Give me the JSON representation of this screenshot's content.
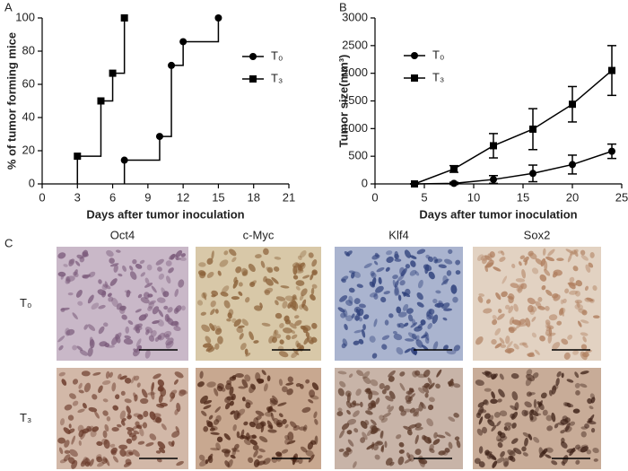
{
  "chart_data": [
    {
      "type": "step",
      "panel": "A",
      "xlabel": "Days after tumor inoculation",
      "ylabel": "% of tumor forming mice",
      "xlim": [
        0,
        21
      ],
      "xticks": [
        0,
        3,
        6,
        9,
        12,
        15,
        18,
        21
      ],
      "ylim": [
        0,
        100
      ],
      "yticks": [
        0,
        20,
        40,
        60,
        80,
        100
      ],
      "series": [
        {
          "name": "T₀",
          "color": "#000000",
          "marker": "circle",
          "x": [
            7,
            10,
            11,
            12,
            15
          ],
          "values": [
            14.3,
            28.6,
            71.4,
            85.7,
            100
          ]
        },
        {
          "name": "T₃",
          "color": "#000000",
          "marker": "square",
          "x": [
            3,
            5,
            6,
            7
          ],
          "values": [
            16.7,
            50,
            66.7,
            100
          ]
        }
      ]
    },
    {
      "type": "line",
      "panel": "B",
      "xlabel": "Days after tumor inoculation",
      "ylabel": "Tumor size(mm³)",
      "xlim": [
        0,
        25
      ],
      "xticks": [
        0,
        5,
        10,
        15,
        20,
        25
      ],
      "ylim": [
        0,
        3000
      ],
      "yticks": [
        0,
        500,
        1000,
        1500,
        2000,
        2500,
        3000
      ],
      "series": [
        {
          "name": "T₀",
          "color": "#000000",
          "marker": "circle",
          "x": [
            4,
            8,
            12,
            16,
            20,
            24
          ],
          "values": [
            0,
            10,
            80,
            190,
            350,
            590
          ],
          "errors": [
            0,
            20,
            70,
            150,
            170,
            130
          ]
        },
        {
          "name": "T₃",
          "color": "#000000",
          "marker": "square",
          "x": [
            4,
            8,
            12,
            16,
            20,
            24
          ],
          "values": [
            0,
            270,
            690,
            990,
            1440,
            2050
          ],
          "errors": [
            0,
            60,
            220,
            370,
            320,
            450
          ]
        }
      ]
    }
  ],
  "panel_c": {
    "panel": "C",
    "columns": [
      "Oct4",
      "c-Myc",
      "Klf4",
      "Sox2"
    ],
    "rows": [
      "T₀",
      "T₃"
    ]
  }
}
